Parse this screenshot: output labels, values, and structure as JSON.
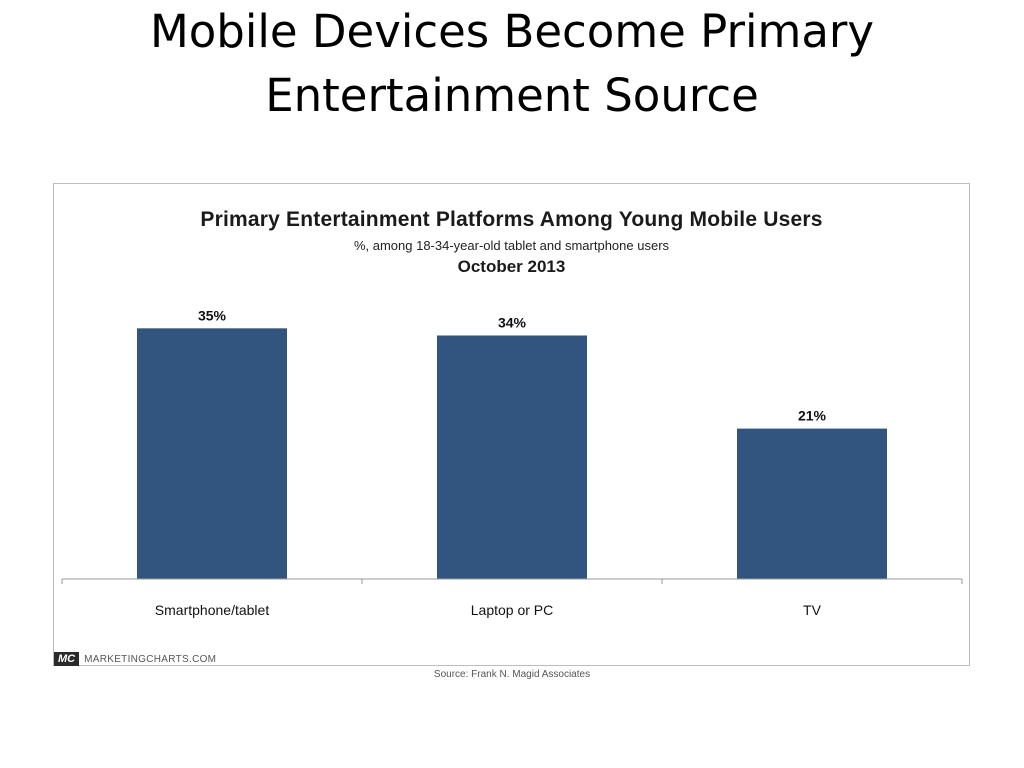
{
  "slide": {
    "title_line1": "Mobile Devices Become Primary",
    "title_line2": "Entertainment Source"
  },
  "chart_data": {
    "type": "bar",
    "title": "Primary Entertainment Platforms Among Young Mobile Users",
    "subtitle": "%, among 18-34-year-old tablet and smartphone users",
    "date": "October 2013",
    "categories": [
      "Smartphone/tablet",
      "Laptop or PC",
      "TV"
    ],
    "values": [
      35,
      34,
      21
    ],
    "value_labels": [
      "35%",
      "34%",
      "21%"
    ],
    "ylim": [
      0,
      37
    ],
    "grid": false,
    "bar_color": "#31557f"
  },
  "footer": {
    "logo": "MC",
    "brand": "MARKETINGCHARTS.COM",
    "source": "Source: Frank N. Magid Associates"
  }
}
